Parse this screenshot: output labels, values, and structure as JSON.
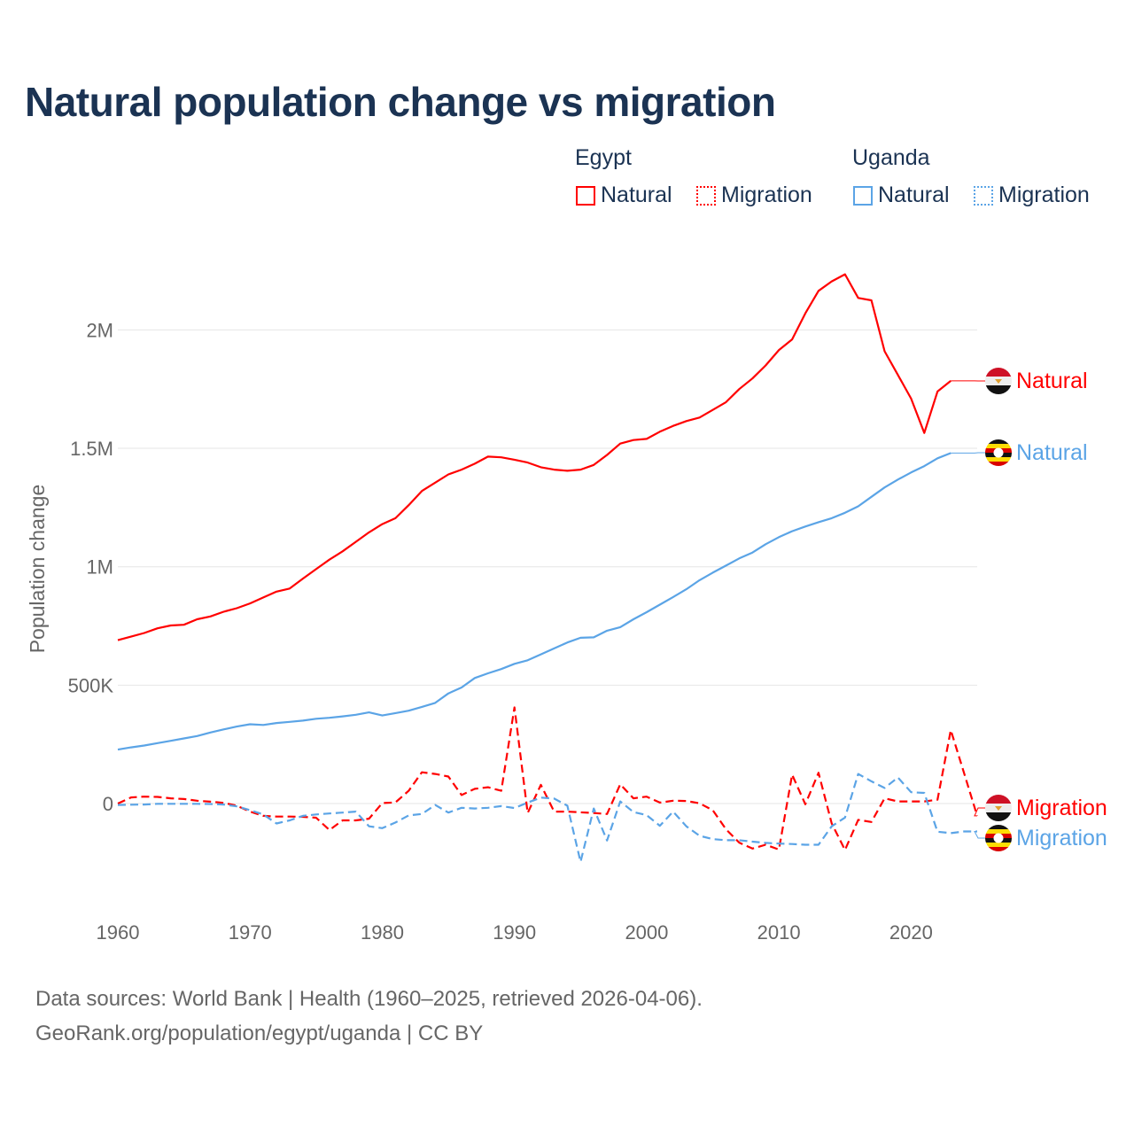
{
  "chart_data": {
    "type": "line",
    "title": "Natural population change vs migration",
    "xlabel": "",
    "ylabel": "Population change",
    "xlim": [
      1960,
      2025
    ],
    "ylim": [
      -420000,
      2500000
    ],
    "grid": true,
    "x_ticks": [
      "1960",
      "1970",
      "1980",
      "1990",
      "2000",
      "2010",
      "2020"
    ],
    "y_ticks": [
      {
        "v": 0,
        "label": "0"
      },
      {
        "v": 500000,
        "label": "500K"
      },
      {
        "v": 1000000,
        "label": "1M"
      },
      {
        "v": 1500000,
        "label": "1.5M"
      },
      {
        "v": 2000000,
        "label": "2M"
      }
    ],
    "legend": {
      "placement": "top-right",
      "groups": [
        {
          "name": "Egypt",
          "items": [
            "Natural",
            "Migration"
          ]
        },
        {
          "name": "Uganda",
          "items": [
            "Natural",
            "Migration"
          ]
        }
      ]
    },
    "series": [
      {
        "country": "Egypt",
        "name": "Natural",
        "style": "solid",
        "color": "#ff0000",
        "end_label": "Natural",
        "start": 1960,
        "values_k": [
          690,
          705,
          720,
          740,
          752,
          755,
          778,
          790,
          810,
          825,
          845,
          870,
          895,
          908,
          950,
          990,
          1030,
          1065,
          1105,
          1145,
          1180,
          1205,
          1260,
          1320,
          1355,
          1390,
          1410,
          1435,
          1465,
          1462,
          1452,
          1440,
          1420,
          1410,
          1405,
          1410,
          1430,
          1472,
          1520,
          1535,
          1540,
          1570,
          1595,
          1615,
          1630,
          1662,
          1695,
          1750,
          1795,
          1850,
          1915,
          1960,
          2070,
          2165,
          2205,
          2235,
          2135,
          2125,
          1910,
          1810,
          1710,
          1565,
          1740,
          1785
        ]
      },
      {
        "country": "Egypt",
        "name": "Migration",
        "style": "dashed",
        "color": "#ff0000",
        "end_label": "Migration",
        "start": 1960,
        "values_k": [
          0,
          26,
          29,
          28,
          22,
          19,
          12,
          8,
          3,
          -9,
          -34,
          -52,
          -55,
          -55,
          -56,
          -60,
          -112,
          -71,
          -71,
          -64,
          2,
          5,
          54,
          132,
          125,
          114,
          36,
          62,
          69,
          54,
          406,
          -40,
          79,
          -34,
          -34,
          -37,
          -40,
          -44,
          81,
          22,
          29,
          4,
          12,
          11,
          1,
          -28,
          -109,
          -165,
          -190,
          -174,
          -194,
          122,
          -3,
          130,
          -84,
          -196,
          -69,
          -78,
          22,
          9,
          9,
          9,
          16,
          310,
          130,
          -52
        ]
      },
      {
        "country": "Uganda",
        "name": "Natural",
        "style": "solid",
        "color": "#5ba4e6",
        "end_label": "Natural",
        "start": 1960,
        "values_k": [
          228,
          237,
          245,
          255,
          265,
          275,
          285,
          300,
          313,
          325,
          335,
          332,
          340,
          345,
          350,
          358,
          362,
          368,
          375,
          385,
          372,
          382,
          392,
          408,
          425,
          465,
          490,
          530,
          550,
          568,
          590,
          605,
          630,
          655,
          680,
          700,
          702,
          730,
          745,
          778,
          808,
          840,
          872,
          905,
          943,
          975,
          1005,
          1035,
          1060,
          1095,
          1125,
          1150,
          1170,
          1188,
          1205,
          1228,
          1255,
          1295,
          1335,
          1368,
          1398,
          1425,
          1458,
          1480
        ]
      },
      {
        "country": "Uganda",
        "name": "Migration",
        "style": "dashed",
        "color": "#5ba4e6",
        "end_label": "Migration",
        "start": 1960,
        "values_k": [
          -6,
          -5,
          -4,
          -1,
          -1,
          -1,
          -1,
          -2,
          -4,
          -12,
          -28,
          -46,
          -84,
          -71,
          -52,
          -46,
          -42,
          -38,
          -34,
          -96,
          -104,
          -80,
          -50,
          -44,
          -6,
          -38,
          -18,
          -21,
          -18,
          -11,
          -19,
          4,
          25,
          21,
          -9,
          -246,
          -21,
          -156,
          9,
          -36,
          -49,
          -94,
          -34,
          -96,
          -136,
          -150,
          -155,
          -155,
          -161,
          -166,
          -169,
          -171,
          -174,
          -174,
          -96,
          -59,
          125,
          94,
          66,
          110,
          48,
          45,
          -119,
          -125,
          -118,
          -118
        ]
      }
    ]
  },
  "source": {
    "line1": "Data sources: World Bank | Health (1960–2025, retrieved 2026-04-06).",
    "line2": "GeoRank.org/population/egypt/uganda | CC BY"
  }
}
